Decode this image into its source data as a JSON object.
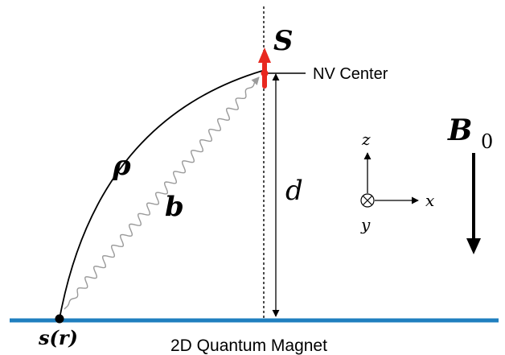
{
  "labels": {
    "spin": "S",
    "nv_center": "NV Center",
    "rho": "ρ",
    "b": "b",
    "d": "d",
    "source": "s(r)",
    "magnet": "2D Quantum Magnet",
    "axis_z": "z",
    "axis_x": "x",
    "axis_y": "y",
    "field_main": "B",
    "field_sub": "0"
  },
  "colors": {
    "spin": "#e8281f",
    "magnet_line": "#1f7fbf",
    "wave": "#9a9a9a",
    "ink": "#000000"
  }
}
